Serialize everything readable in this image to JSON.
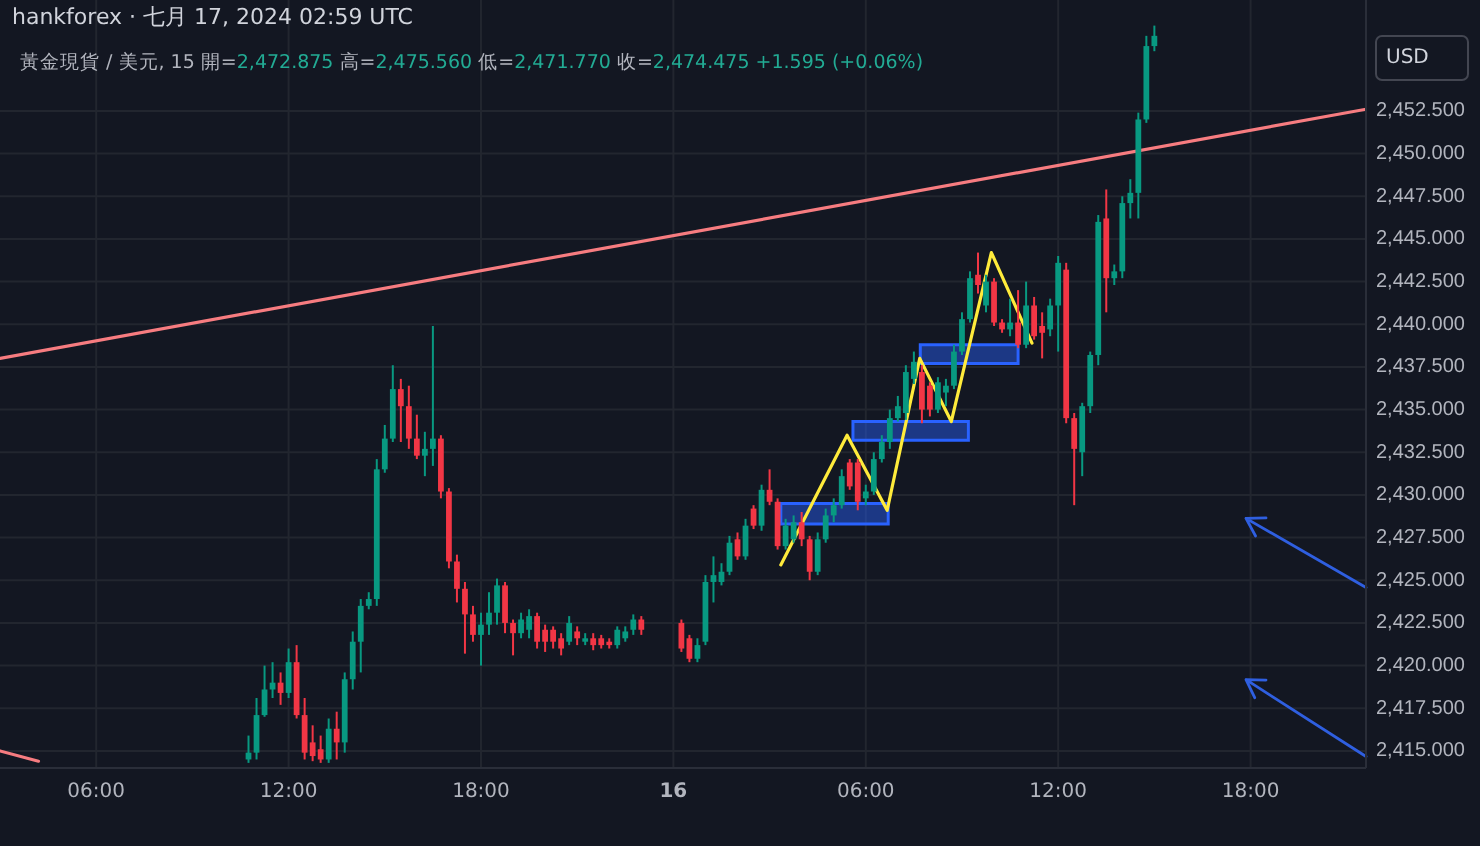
{
  "chart_data": {
    "type": "candlestick",
    "title": "hankforex · 七月 17, 2024 02:59 UTC",
    "subtitle": "黃金現貨 / 美元, 15 開=2,472.875 高=2,475.560 低=2,471.770 收=2,474.475 +1.595 (+0.06%)",
    "ylabel": "USD",
    "x": [
      "2024-07-15T10:45",
      "2024-07-15T11:00",
      "2024-07-15T11:15",
      "2024-07-15T11:30",
      "2024-07-15T11:45",
      "2024-07-15T12:00",
      "2024-07-15T12:15",
      "2024-07-15T12:30",
      "2024-07-15T12:45",
      "2024-07-15T13:00",
      "2024-07-15T13:15",
      "2024-07-15T13:30",
      "2024-07-15T13:45",
      "2024-07-15T14:00",
      "2024-07-15T14:15",
      "2024-07-15T14:30",
      "2024-07-15T14:45",
      "2024-07-15T15:00",
      "2024-07-15T15:15",
      "2024-07-15T15:30",
      "2024-07-15T15:45",
      "2024-07-15T16:00",
      "2024-07-15T16:15",
      "2024-07-15T16:30",
      "2024-07-15T16:45",
      "2024-07-15T17:00",
      "2024-07-15T17:15",
      "2024-07-15T17:30",
      "2024-07-15T17:45",
      "2024-07-15T18:00",
      "2024-07-15T18:15",
      "2024-07-15T18:30",
      "2024-07-15T18:45",
      "2024-07-15T19:00",
      "2024-07-15T19:15",
      "2024-07-15T19:30",
      "2024-07-15T19:45",
      "2024-07-15T20:00",
      "2024-07-15T20:15",
      "2024-07-15T20:30",
      "2024-07-15T20:45",
      "2024-07-15T21:00",
      "2024-07-15T21:15",
      "2024-07-15T21:30",
      "2024-07-15T21:45",
      "2024-07-15T22:00",
      "2024-07-15T22:15",
      "2024-07-15T22:30",
      "2024-07-15T22:45",
      "2024-07-15T23:00",
      "2024-07-16T00:15",
      "2024-07-16T00:30",
      "2024-07-16T00:45",
      "2024-07-16T01:00",
      "2024-07-16T01:15",
      "2024-07-16T01:30",
      "2024-07-16T01:45",
      "2024-07-16T02:00",
      "2024-07-16T02:15",
      "2024-07-16T02:30",
      "2024-07-16T02:45",
      "2024-07-16T03:00",
      "2024-07-16T03:15",
      "2024-07-16T03:30",
      "2024-07-16T03:45",
      "2024-07-16T04:00",
      "2024-07-16T04:15",
      "2024-07-16T04:30",
      "2024-07-16T04:45",
      "2024-07-16T05:00",
      "2024-07-16T05:15",
      "2024-07-16T05:30",
      "2024-07-16T05:45",
      "2024-07-16T06:00",
      "2024-07-16T06:15",
      "2024-07-16T06:30",
      "2024-07-16T06:45",
      "2024-07-16T07:00",
      "2024-07-16T07:15",
      "2024-07-16T07:30",
      "2024-07-16T07:45",
      "2024-07-16T08:00",
      "2024-07-16T08:15",
      "2024-07-16T08:30",
      "2024-07-16T08:45",
      "2024-07-16T09:00",
      "2024-07-16T09:15",
      "2024-07-16T09:30",
      "2024-07-16T09:45",
      "2024-07-16T10:00",
      "2024-07-16T10:15",
      "2024-07-16T10:30",
      "2024-07-16T10:45",
      "2024-07-16T11:00",
      "2024-07-16T11:15",
      "2024-07-16T11:30",
      "2024-07-16T11:45",
      "2024-07-16T12:00",
      "2024-07-16T12:15",
      "2024-07-16T12:30",
      "2024-07-16T12:45",
      "2024-07-16T13:00",
      "2024-07-16T13:15",
      "2024-07-16T13:30",
      "2024-07-16T13:45",
      "2024-07-16T14:00",
      "2024-07-16T14:15",
      "2024-07-16T14:30",
      "2024-07-16T14:45",
      "2024-07-16T15:00"
    ],
    "ohlc": [
      [
        2414.5,
        2415.9,
        2414.3,
        2414.9
      ],
      [
        2414.9,
        2418.1,
        2414.5,
        2417.1
      ],
      [
        2417.1,
        2420.0,
        2417.0,
        2418.6
      ],
      [
        2418.6,
        2420.2,
        2418.1,
        2419.0
      ],
      [
        2419.0,
        2419.6,
        2417.7,
        2418.4
      ],
      [
        2418.4,
        2421.0,
        2418.1,
        2420.2
      ],
      [
        2420.2,
        2421.2,
        2416.9,
        2417.1
      ],
      [
        2417.1,
        2418.1,
        2414.5,
        2414.9
      ],
      [
        2415.5,
        2416.5,
        2414.4,
        2414.7
      ],
      [
        2415.1,
        2415.9,
        2414.3,
        2414.5
      ],
      [
        2414.5,
        2416.9,
        2414.3,
        2416.3
      ],
      [
        2416.3,
        2417.3,
        2414.5,
        2415.5
      ],
      [
        2415.5,
        2419.6,
        2414.9,
        2419.2
      ],
      [
        2419.2,
        2422.0,
        2418.6,
        2421.4
      ],
      [
        2421.4,
        2423.9,
        2419.6,
        2423.5
      ],
      [
        2423.5,
        2424.3,
        2423.3,
        2423.9
      ],
      [
        2423.9,
        2432.1,
        2423.5,
        2431.5
      ],
      [
        2431.5,
        2434.1,
        2431.3,
        2433.3
      ],
      [
        2433.3,
        2437.6,
        2433.1,
        2436.2
      ],
      [
        2436.2,
        2436.8,
        2433.1,
        2435.2
      ],
      [
        2435.2,
        2436.4,
        2432.7,
        2433.3
      ],
      [
        2433.3,
        2434.7,
        2432.1,
        2432.3
      ],
      [
        2432.3,
        2433.7,
        2431.1,
        2432.7
      ],
      [
        2432.7,
        2439.9,
        2431.7,
        2433.3
      ],
      [
        2433.3,
        2433.5,
        2429.8,
        2430.2
      ],
      [
        2430.2,
        2430.4,
        2425.7,
        2426.1
      ],
      [
        2426.1,
        2426.5,
        2423.7,
        2424.5
      ],
      [
        2424.5,
        2424.9,
        2420.7,
        2423.0
      ],
      [
        2423.0,
        2423.5,
        2421.4,
        2421.8
      ],
      [
        2421.8,
        2423.1,
        2420.0,
        2422.4
      ],
      [
        2422.4,
        2424.3,
        2421.8,
        2423.1
      ],
      [
        2423.1,
        2425.1,
        2422.4,
        2424.7
      ],
      [
        2424.7,
        2424.9,
        2421.9,
        2422.5
      ],
      [
        2422.5,
        2422.7,
        2420.6,
        2421.9
      ],
      [
        2421.9,
        2423.1,
        2421.6,
        2422.7
      ],
      [
        2422.1,
        2423.3,
        2421.6,
        2422.9
      ],
      [
        2422.9,
        2423.1,
        2421.0,
        2421.4
      ],
      [
        2422.1,
        2422.4,
        2420.8,
        2421.4
      ],
      [
        2422.1,
        2422.3,
        2421.0,
        2421.4
      ],
      [
        2421.6,
        2421.9,
        2420.6,
        2421.0
      ],
      [
        2421.4,
        2422.9,
        2421.2,
        2422.5
      ],
      [
        2422.0,
        2422.3,
        2421.2,
        2421.6
      ],
      [
        2421.4,
        2421.9,
        2421.2,
        2421.6
      ],
      [
        2421.6,
        2421.9,
        2420.9,
        2421.2
      ],
      [
        2421.6,
        2421.8,
        2421.0,
        2421.2
      ],
      [
        2421.4,
        2421.6,
        2421.0,
        2421.2
      ],
      [
        2421.2,
        2422.3,
        2421.0,
        2422.1
      ],
      [
        2421.6,
        2422.3,
        2421.4,
        2422.0
      ],
      [
        2422.1,
        2423.0,
        2421.8,
        2422.7
      ],
      [
        2422.7,
        2422.9,
        2421.8,
        2422.1
      ],
      [
        2422.5,
        2422.7,
        2420.8,
        2421.0
      ],
      [
        2421.6,
        2421.8,
        2420.2,
        2420.4
      ],
      [
        2420.4,
        2421.6,
        2420.2,
        2421.2
      ],
      [
        2421.4,
        2425.3,
        2421.2,
        2424.9
      ],
      [
        2424.9,
        2426.4,
        2423.7,
        2425.3
      ],
      [
        2424.9,
        2426.0,
        2424.7,
        2425.5
      ],
      [
        2425.5,
        2427.6,
        2425.3,
        2427.2
      ],
      [
        2427.4,
        2427.8,
        2426.2,
        2426.4
      ],
      [
        2426.4,
        2428.6,
        2426.2,
        2428.2
      ],
      [
        2429.2,
        2429.4,
        2428.0,
        2428.2
      ],
      [
        2428.2,
        2430.6,
        2427.9,
        2430.3
      ],
      [
        2430.3,
        2431.5,
        2429.4,
        2429.6
      ],
      [
        2429.6,
        2429.8,
        2426.8,
        2427.0
      ],
      [
        2427.0,
        2428.6,
        2426.8,
        2428.2
      ],
      [
        2427.4,
        2428.8,
        2427.2,
        2428.4
      ],
      [
        2428.4,
        2429.0,
        2427.0,
        2427.4
      ],
      [
        2427.4,
        2427.6,
        2425.0,
        2425.5
      ],
      [
        2425.5,
        2427.8,
        2425.3,
        2427.4
      ],
      [
        2427.4,
        2429.2,
        2427.2,
        2428.8
      ],
      [
        2428.8,
        2429.8,
        2428.4,
        2429.4
      ],
      [
        2429.4,
        2431.5,
        2429.2,
        2431.1
      ],
      [
        2431.9,
        2432.1,
        2430.3,
        2430.5
      ],
      [
        2431.9,
        2432.1,
        2429.1,
        2429.6
      ],
      [
        2429.8,
        2430.6,
        2429.4,
        2430.2
      ],
      [
        2430.2,
        2432.5,
        2430.0,
        2432.1
      ],
      [
        2432.1,
        2433.5,
        2431.9,
        2433.1
      ],
      [
        2433.1,
        2435.0,
        2432.7,
        2434.5
      ],
      [
        2434.5,
        2435.8,
        2434.3,
        2435.2
      ],
      [
        2434.8,
        2437.6,
        2434.4,
        2437.2
      ],
      [
        2436.8,
        2438.4,
        2436.5,
        2437.8
      ],
      [
        2437.2,
        2437.6,
        2434.2,
        2435.0
      ],
      [
        2436.4,
        2436.6,
        2434.6,
        2435.0
      ],
      [
        2435.0,
        2436.9,
        2434.8,
        2436.6
      ],
      [
        2436.0,
        2436.8,
        2435.2,
        2436.4
      ],
      [
        2436.4,
        2438.8,
        2436.2,
        2438.4
      ],
      [
        2438.4,
        2440.7,
        2438.2,
        2440.3
      ],
      [
        2440.3,
        2443.1,
        2440.1,
        2442.7
      ],
      [
        2442.9,
        2444.2,
        2441.8,
        2442.3
      ],
      [
        2441.1,
        2442.9,
        2440.7,
        2442.5
      ],
      [
        2442.5,
        2442.7,
        2439.9,
        2440.1
      ],
      [
        2440.1,
        2440.3,
        2439.5,
        2439.7
      ],
      [
        2439.7,
        2441.5,
        2439.3,
        2440.1
      ],
      [
        2440.1,
        2442.0,
        2438.6,
        2438.8
      ],
      [
        2438.8,
        2442.5,
        2438.6,
        2441.1
      ],
      [
        2441.1,
        2441.6,
        2439.1,
        2439.3
      ],
      [
        2439.9,
        2440.7,
        2438.0,
        2439.5
      ],
      [
        2439.7,
        2441.5,
        2439.3,
        2441.1
      ],
      [
        2441.1,
        2444.0,
        2438.4,
        2443.6
      ],
      [
        2443.2,
        2443.6,
        2434.2,
        2434.5
      ],
      [
        2434.5,
        2434.8,
        2429.4,
        2432.7
      ],
      [
        2432.5,
        2435.4,
        2431.1,
        2435.2
      ],
      [
        2435.2,
        2438.4,
        2434.8,
        2438.2
      ],
      [
        2438.2,
        2446.4,
        2437.6,
        2446.0
      ],
      [
        2446.2,
        2447.9,
        2440.7,
        2442.7
      ],
      [
        2442.7,
        2443.5,
        2442.3,
        2443.1
      ],
      [
        2443.1,
        2447.5,
        2442.7,
        2447.1
      ],
      [
        2447.1,
        2448.5,
        2446.2,
        2447.7
      ],
      [
        2447.7,
        2452.4,
        2446.2,
        2452.0
      ],
      [
        2452.0,
        2456.9,
        2451.8,
        2456.3
      ],
      [
        2456.3,
        2457.5,
        2456.0,
        2456.9
      ]
    ],
    "colors": [
      "#089981",
      "#089981",
      "#089981",
      "#089981",
      "#f23645",
      "#089981",
      "#f23645",
      "#f23645",
      "#f23645",
      "#f23645",
      "#089981",
      "#f23645",
      "#089981",
      "#089981",
      "#089981",
      "#089981",
      "#089981",
      "#089981",
      "#089981",
      "#f23645",
      "#f23645",
      "#f23645",
      "#089981",
      "#089981",
      "#f23645",
      "#f23645",
      "#f23645",
      "#f23645",
      "#f23645",
      "#089981",
      "#089981",
      "#089981",
      "#f23645",
      "#f23645",
      "#089981",
      "#089981",
      "#f23645",
      "#f23645",
      "#f23645",
      "#f23645",
      "#089981",
      "#f23645",
      "#089981",
      "#f23645",
      "#f23645",
      "#f23645",
      "#089981",
      "#089981",
      "#089981",
      "#f23645",
      "#f23645",
      "#f23645",
      "#089981",
      "#089981",
      "#089981",
      "#089981",
      "#089981",
      "#f23645",
      "#089981",
      "#f23645",
      "#089981",
      "#f23645",
      "#f23645",
      "#089981",
      "#089981",
      "#f23645",
      "#f23645",
      "#089981",
      "#089981",
      "#089981",
      "#089981",
      "#f23645",
      "#f23645",
      "#089981",
      "#089981",
      "#089981",
      "#089981",
      "#089981",
      "#089981",
      "#089981",
      "#f23645",
      "#f23645",
      "#089981",
      "#089981",
      "#089981",
      "#089981",
      "#089981",
      "#f23645",
      "#089981",
      "#f23645",
      "#f23645",
      "#089981",
      "#f23645",
      "#089981",
      "#f23645",
      "#f23645",
      "#089981",
      "#089981",
      "#f23645",
      "#f23645",
      "#089981",
      "#089981",
      "#089981",
      "#f23645",
      "#089981",
      "#089981",
      "#089981",
      "#089981",
      "#089981",
      "#089981"
    ],
    "series": [
      {
        "type": "line",
        "color": "#f77c80",
        "x": [
          "2024-07-15T03:00",
          "2024-07-16T21:36"
        ],
        "values": [
          2438.0,
          2452.6
        ]
      },
      {
        "type": "line",
        "color": "#f77c80",
        "x": [
          "2024-07-15T03:00",
          "2024-07-15T04:12"
        ],
        "values": [
          2415.0,
          2414.4
        ]
      },
      {
        "type": "area",
        "color": "#2962ff",
        "x": [
          "2024-07-16T03:21",
          "2024-07-16T06:42"
        ],
        "values": [
          null,
          null
        ],
        "lower": [
          2428.3,
          2428.3
        ],
        "upper": [
          2429.5,
          2429.5
        ]
      },
      {
        "type": "area",
        "color": "#2962ff",
        "x": [
          "2024-07-16T05:36",
          "2024-07-16T09:12"
        ],
        "values": [
          null,
          null
        ],
        "lower": [
          2433.2,
          2433.2
        ],
        "upper": [
          2434.3,
          2434.3
        ]
      },
      {
        "type": "area",
        "color": "#2962ff",
        "x": [
          "2024-07-16T07:42",
          "2024-07-16T10:45"
        ],
        "values": [
          null,
          null
        ],
        "lower": [
          2437.7,
          2437.7
        ],
        "upper": [
          2438.8,
          2438.8
        ]
      },
      {
        "type": "line",
        "color": "#ffeb3b",
        "x": [
          "2024-07-16T03:21",
          "2024-07-16T05:25",
          "2024-07-16T06:40",
          "2024-07-16T07:41",
          "2024-07-16T08:40",
          "2024-07-16T09:55",
          "2024-07-16T11:11"
        ],
        "values": [
          2425.9,
          2433.5,
          2429.1,
          2438.0,
          2434.3,
          2444.2,
          2438.9
        ]
      }
    ],
    "xlim": [
      "2024-07-15T03:00",
      "2024-07-16T21:36"
    ],
    "ylim": [
      2414.0,
      2459.0
    ],
    "xticks": [
      {
        "value": "2024-07-15T06:00",
        "label": "06:00"
      },
      {
        "value": "2024-07-15T12:00",
        "label": "12:00"
      },
      {
        "value": "2024-07-15T18:00",
        "label": "18:00"
      },
      {
        "value": "2024-07-16T00:00",
        "label": "16"
      },
      {
        "value": "2024-07-16T06:00",
        "label": "06:00"
      },
      {
        "value": "2024-07-16T12:00",
        "label": "12:00"
      },
      {
        "value": "2024-07-16T18:00",
        "label": "18:00"
      }
    ],
    "yticks": [
      {
        "value": 2415,
        "label": "2,415.000"
      },
      {
        "value": 2417.5,
        "label": "2,417.500"
      },
      {
        "value": 2420,
        "label": "2,420.000"
      },
      {
        "value": 2422.5,
        "label": "2,422.500"
      },
      {
        "value": 2425,
        "label": "2,425.000"
      },
      {
        "value": 2427.5,
        "label": "2,427.500"
      },
      {
        "value": 2430,
        "label": "2,430.000"
      },
      {
        "value": 2432.5,
        "label": "2,432.500"
      },
      {
        "value": 2435,
        "label": "2,435.000"
      },
      {
        "value": 2437.5,
        "label": "2,437.500"
      },
      {
        "value": 2440,
        "label": "2,440.000"
      },
      {
        "value": 2442.5,
        "label": "2,442.500"
      },
      {
        "value": 2445,
        "label": "2,445.000"
      },
      {
        "value": 2447.5,
        "label": "2,447.500"
      },
      {
        "value": 2450,
        "label": "2,450.000"
      },
      {
        "value": 2452.5,
        "label": "2,452.500"
      }
    ],
    "grid": true
  }
}
